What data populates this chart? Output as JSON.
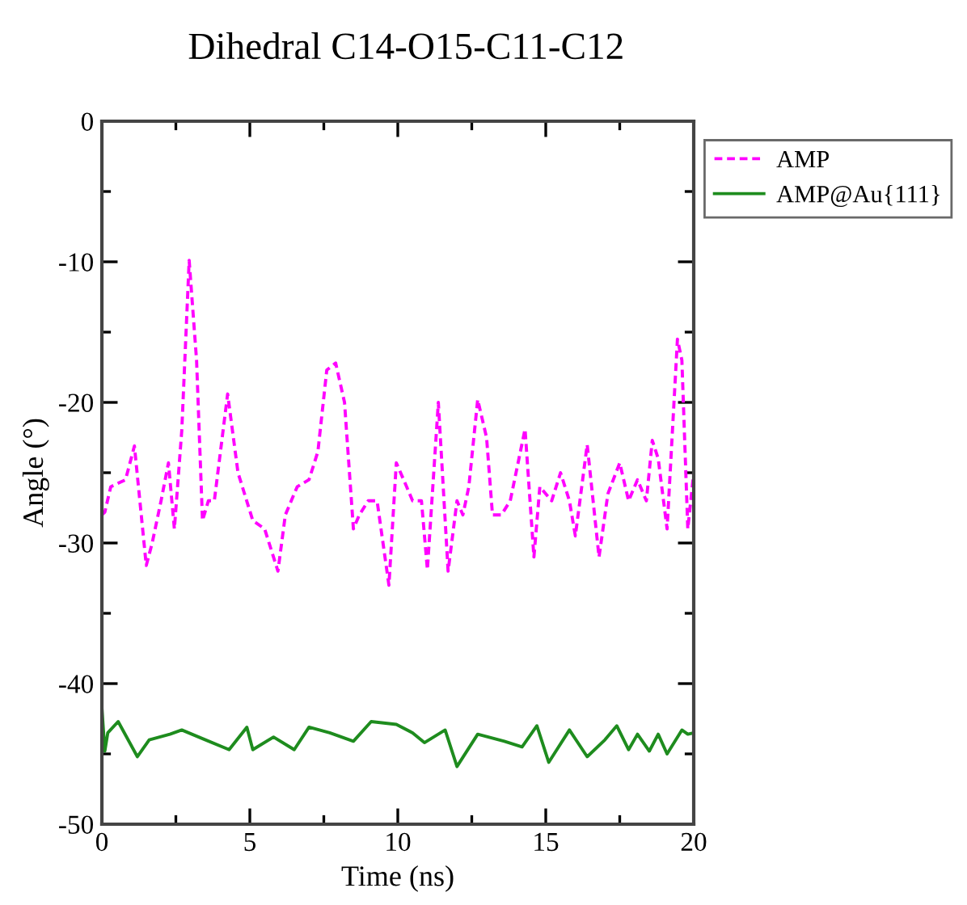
{
  "chart_data": {
    "type": "line",
    "title": "Dihedral C14-O15-C11-C12",
    "xlabel": "Time (ns)",
    "ylabel": "Angle (°)",
    "xlim": [
      0,
      20
    ],
    "xticks": [
      0,
      5,
      10,
      15,
      20
    ],
    "ylim": [
      -50,
      0
    ],
    "yticks": [
      -50,
      -40,
      -30,
      -20,
      -10,
      0
    ],
    "grid": false,
    "legend": "top right",
    "marker": "none",
    "series": [
      {
        "name": "AMP",
        "color": "#ff00ff",
        "line_style": "dashed",
        "x": [
          0,
          0.1,
          0.3,
          0.8,
          1.1,
          1.5,
          1.7,
          2.0,
          2.25,
          2.45,
          2.7,
          2.95,
          3.2,
          3.4,
          3.6,
          3.8,
          4.25,
          4.6,
          5.1,
          5.5,
          5.95,
          6.2,
          6.6,
          7.0,
          7.3,
          7.6,
          7.9,
          8.2,
          8.5,
          8.7,
          9.0,
          9.3,
          9.7,
          9.95,
          10.3,
          10.5,
          10.8,
          11.0,
          11.37,
          11.7,
          12.0,
          12.2,
          12.4,
          12.7,
          13.0,
          13.2,
          13.5,
          13.8,
          14.3,
          14.6,
          14.8,
          15.2,
          15.5,
          15.8,
          16.0,
          16.4,
          16.8,
          17.1,
          17.5,
          17.8,
          18.1,
          18.4,
          18.6,
          18.8,
          19.1,
          19.45,
          19.6,
          19.8,
          20
        ],
        "values": [
          -28,
          -27.8,
          -26,
          -25.5,
          -23.1,
          -31.6,
          -30,
          -27,
          -24.3,
          -29,
          -22,
          -9.9,
          -17,
          -28.4,
          -27,
          -27,
          -19.4,
          -25,
          -28.4,
          -29,
          -32,
          -28,
          -26,
          -25.5,
          -23.5,
          -17.7,
          -17.2,
          -20,
          -29,
          -28,
          -27,
          -27,
          -33,
          -24.3,
          -26,
          -27,
          -27,
          -31.9,
          -20,
          -32,
          -27,
          -28,
          -26,
          -19.8,
          -22.5,
          -28,
          -28,
          -27,
          -21.9,
          -31,
          -26,
          -27,
          -25,
          -27,
          -29.5,
          -23,
          -31,
          -26.5,
          -24.3,
          -27,
          -25.5,
          -27,
          -22.7,
          -24,
          -29,
          -15.5,
          -17,
          -29,
          -25
        ]
      },
      {
        "name": "AMP@Au{111}",
        "color": "#1e8c1e",
        "line_style": "solid",
        "x": [
          0,
          0.1,
          0.2,
          0.55,
          1.2,
          1.6,
          2.3,
          2.7,
          3.5,
          4.3,
          4.9,
          5.1,
          5.8,
          6.5,
          7.0,
          7.7,
          8.5,
          9.1,
          9.95,
          10.5,
          10.9,
          11.6,
          12.0,
          12.7,
          13.6,
          14.2,
          14.7,
          15.1,
          15.8,
          16.4,
          17.0,
          17.4,
          17.8,
          18.1,
          18.5,
          18.8,
          19.1,
          19.6,
          19.8,
          20
        ],
        "values": [
          -41.7,
          -44.8,
          -43.5,
          -42.7,
          -45.2,
          -44,
          -43.6,
          -43.3,
          -44,
          -44.7,
          -43.1,
          -44.7,
          -43.8,
          -44.7,
          -43.1,
          -43.5,
          -44.1,
          -42.7,
          -42.9,
          -43.5,
          -44.2,
          -43.3,
          -45.9,
          -43.6,
          -44.1,
          -44.5,
          -43,
          -45.6,
          -43.3,
          -45.2,
          -44,
          -43,
          -44.7,
          -43.6,
          -44.8,
          -43.6,
          -45,
          -43.3,
          -43.6,
          -43.5
        ]
      }
    ]
  }
}
